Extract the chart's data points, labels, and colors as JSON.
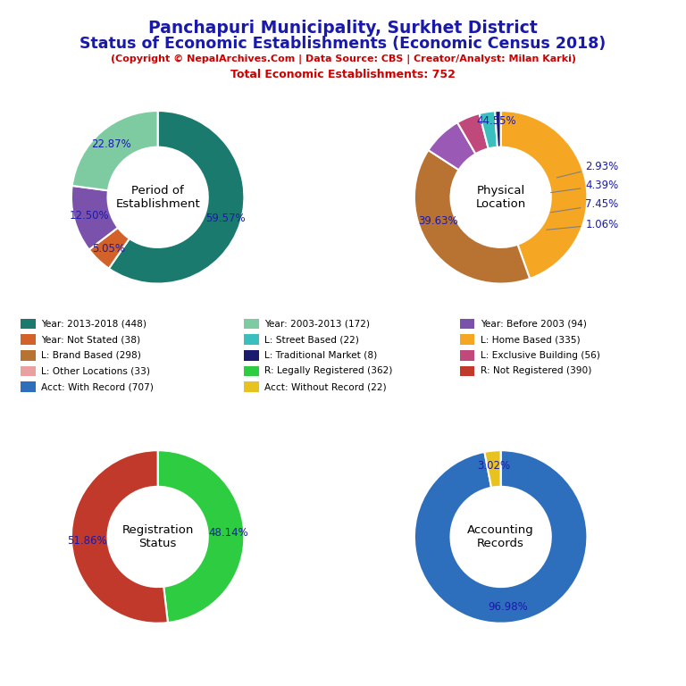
{
  "title_line1": "Panchapuri Municipality, Surkhet District",
  "title_line2": "Status of Economic Establishments (Economic Census 2018)",
  "subtitle": "(Copyright © NepalArchives.Com | Data Source: CBS | Creator/Analyst: Milan Karki)",
  "total_line": "Total Economic Establishments: 752",
  "charts": {
    "period": {
      "label": "Period of\nEstablishment",
      "values": [
        59.57,
        5.05,
        12.5,
        22.87
      ],
      "colors": [
        "#1a7a6e",
        "#d2622a",
        "#7b52ab",
        "#7ecba1"
      ],
      "pct_labels": [
        "59.57%",
        "5.05%",
        "12.50%",
        "22.87%"
      ]
    },
    "location": {
      "label": "Physical\nLocation",
      "values": [
        44.55,
        39.63,
        7.45,
        4.39,
        2.93,
        1.06
      ],
      "colors": [
        "#f5a623",
        "#b87333",
        "#9b59b6",
        "#c0487a",
        "#3abfbf",
        "#1a1a6e"
      ],
      "pct_labels": [
        "44.55%",
        "39.63%",
        "7.45%",
        "4.39%",
        "2.93%",
        "1.06%"
      ],
      "label_positions": [
        "top",
        "left",
        "right_far",
        "right_mid",
        "right_top",
        "right_bottom"
      ]
    },
    "registration": {
      "label": "Registration\nStatus",
      "values": [
        48.14,
        51.86
      ],
      "colors": [
        "#2ecc40",
        "#c0392b"
      ],
      "pct_labels": [
        "48.14%",
        "51.86%"
      ]
    },
    "accounting": {
      "label": "Accounting\nRecords",
      "values": [
        96.98,
        3.02
      ],
      "colors": [
        "#2e6fbd",
        "#e8c320"
      ],
      "pct_labels": [
        "96.98%",
        "3.02%"
      ]
    }
  },
  "legend_items": [
    {
      "label": "Year: 2013-2018 (448)",
      "color": "#1a7a6e"
    },
    {
      "label": "Year: 2003-2013 (172)",
      "color": "#7ecba1"
    },
    {
      "label": "Year: Before 2003 (94)",
      "color": "#7b52ab"
    },
    {
      "label": "Year: Not Stated (38)",
      "color": "#d2622a"
    },
    {
      "label": "L: Street Based (22)",
      "color": "#3abfbf"
    },
    {
      "label": "L: Home Based (335)",
      "color": "#f5a623"
    },
    {
      "label": "L: Brand Based (298)",
      "color": "#b87333"
    },
    {
      "label": "L: Traditional Market (8)",
      "color": "#1a1a6e"
    },
    {
      "label": "L: Exclusive Building (56)",
      "color": "#c0487a"
    },
    {
      "label": "R: Legally Registered (362)",
      "color": "#2ecc40"
    },
    {
      "label": "L: Other Locations (33)",
      "color": "#e8a0a0"
    },
    {
      "label": "R: Not Registered (390)",
      "color": "#c0392b"
    },
    {
      "label": "Acct: With Record (707)",
      "color": "#2e6fbd"
    },
    {
      "label": "Acct: Without Record (22)",
      "color": "#e8c320"
    }
  ],
  "title_color": "#1a1aaa",
  "subtitle_color": "#cc0000",
  "pct_color": "#1a1aaa",
  "background_color": "#ffffff"
}
